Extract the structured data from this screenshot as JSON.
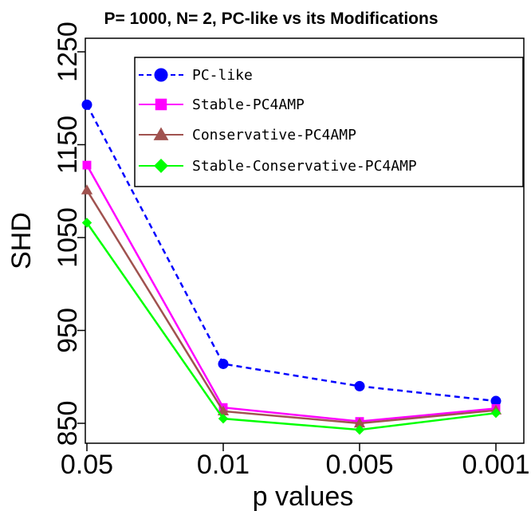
{
  "chart_data": {
    "type": "line",
    "title": "P= 1000, N= 2, PC-like vs its Modifications",
    "xlabel": "p values",
    "ylabel": "SHD",
    "categories": [
      "0.05",
      "0.01",
      "0.005",
      "0.001"
    ],
    "y_ticks": [
      "850",
      "950",
      "1050",
      "1150",
      "1250"
    ],
    "ylim": [
      845,
      1282
    ],
    "grid": false,
    "legend_position": "top-right",
    "series": [
      {
        "name": "PC-like",
        "values": [
          1193,
          914,
          890,
          874
        ],
        "color": "#0000ff",
        "dash": "dashed",
        "marker": "circle"
      },
      {
        "name": "Stable-PC4AMP",
        "values": [
          1128,
          867,
          852,
          866
        ],
        "color": "#ff00ff",
        "dash": "solid",
        "marker": "square"
      },
      {
        "name": "Conservative-PC4AMP",
        "values": [
          1101,
          863,
          850,
          864
        ],
        "color": "#a0524f",
        "dash": "solid",
        "marker": "triangle"
      },
      {
        "name": "Stable-Conservative-PC4AMP",
        "values": [
          1066,
          855,
          843,
          861
        ],
        "color": "#00ff00",
        "dash": "solid",
        "marker": "diamond"
      }
    ]
  }
}
